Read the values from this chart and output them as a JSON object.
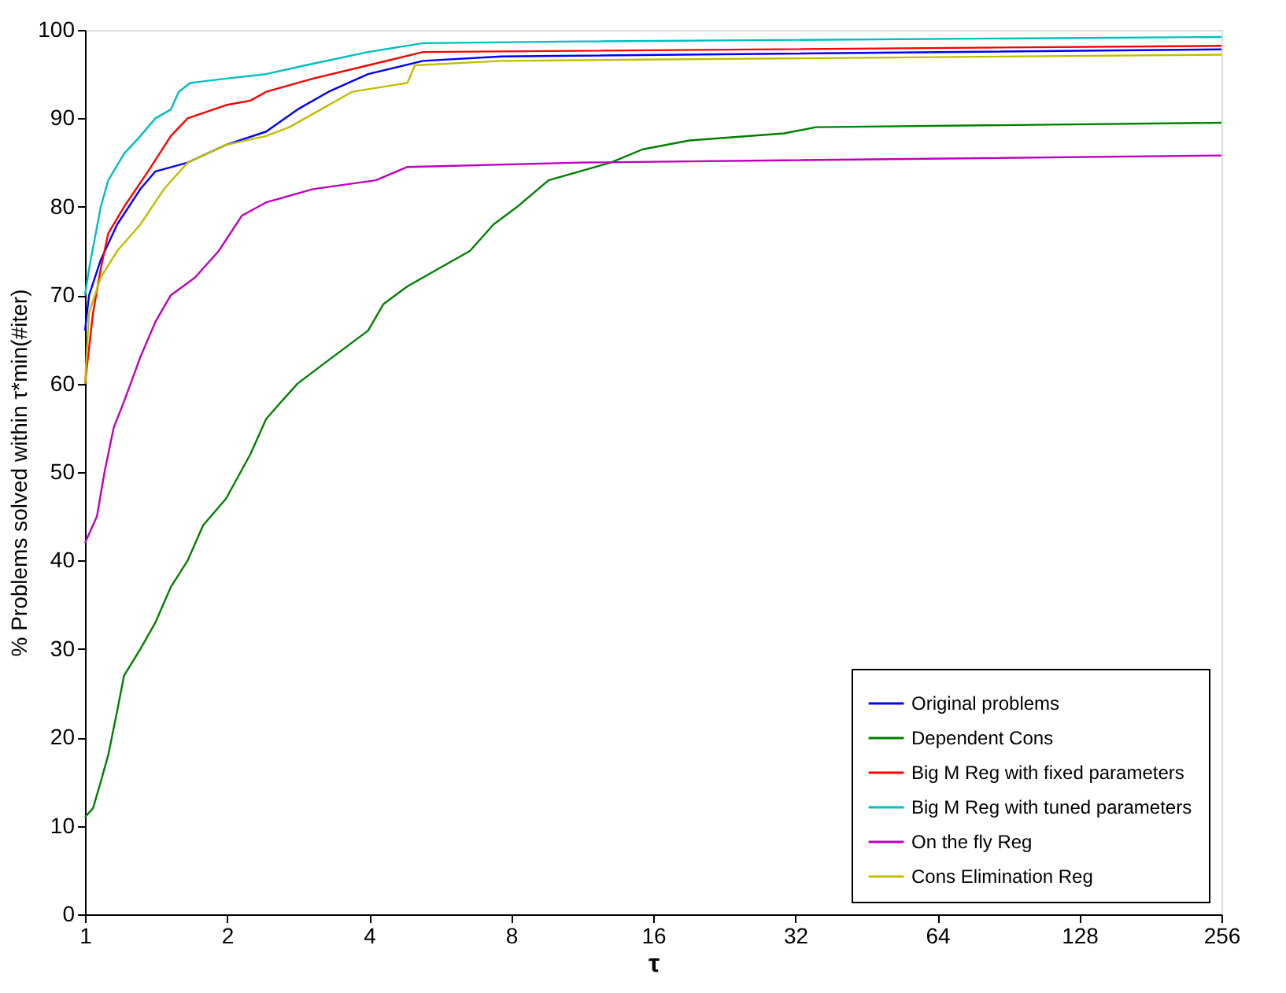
{
  "chart_data": {
    "type": "line",
    "xlabel": "τ",
    "ylabel": "% Problems solved within τ*min(#iter)",
    "log": "x",
    "grid": false,
    "legend": "bottom right",
    "xlim": [
      1,
      256
    ],
    "xticks": [
      1,
      2,
      4,
      8,
      16,
      32,
      64,
      128,
      256
    ],
    "ylim": [
      0,
      100
    ],
    "yticks": [
      0,
      10,
      20,
      30,
      40,
      50,
      60,
      70,
      80,
      90,
      100
    ],
    "line_style": "solid",
    "marker": "none",
    "series": [
      {
        "name": "Original problems",
        "color": "#0000ff",
        "x": [
          1,
          1.02,
          1.08,
          1.17,
          1.31,
          1.41,
          1.65,
          1.99,
          2.42,
          2.82,
          3.28,
          3.98,
          5.2,
          7.63,
          256
        ],
        "values": [
          66,
          70,
          74,
          78,
          82,
          84,
          85,
          87,
          88.5,
          91,
          93,
          95,
          96.5,
          97,
          97.8
        ]
      },
      {
        "name": "Dependent Cons",
        "color": "#008000",
        "x": [
          1,
          1.04,
          1.08,
          1.12,
          1.17,
          1.21,
          1.31,
          1.41,
          1.52,
          1.65,
          1.78,
          1.99,
          2.24,
          2.42,
          2.61,
          2.82,
          3.16,
          3.98,
          4.29,
          4.82,
          5.61,
          6.54,
          7.34,
          8.24,
          9.6,
          13.0,
          15.2,
          19.1,
          30.3,
          35.4,
          256
        ],
        "values": [
          11,
          12,
          15,
          18,
          23,
          27,
          30,
          33,
          37,
          40,
          44,
          47,
          52,
          56,
          58,
          60,
          62,
          66,
          69,
          71,
          73,
          75,
          78,
          80,
          83,
          85,
          86.5,
          87.5,
          88.3,
          89,
          89.5
        ]
      },
      {
        "name": "Big M Reg with fixed parameters",
        "color": "#ff0000",
        "x": [
          1,
          1.04,
          1.08,
          1.12,
          1.21,
          1.36,
          1.52,
          1.65,
          1.99,
          2.24,
          2.42,
          3.04,
          3.98,
          5.2,
          256
        ],
        "values": [
          60,
          68,
          73,
          77,
          80,
          84,
          88,
          90,
          91.5,
          92,
          93,
          94.5,
          96,
          97.5,
          98.2
        ]
      },
      {
        "name": "Big M Reg with tuned parameters",
        "color": "#00bfbf",
        "x": [
          1,
          1.02,
          1.08,
          1.12,
          1.21,
          1.31,
          1.41,
          1.52,
          1.58,
          1.67,
          1.99,
          2.42,
          2.93,
          3.98,
          5.2,
          11.2,
          256
        ],
        "values": [
          70,
          73,
          80,
          83,
          86,
          88,
          90,
          91,
          93,
          94,
          94.5,
          95,
          96,
          97.5,
          98.5,
          98.7,
          99.2
        ]
      },
      {
        "name": "On the fly Reg",
        "color": "#bf00bf",
        "x": [
          1,
          1.06,
          1.1,
          1.15,
          1.21,
          1.31,
          1.41,
          1.52,
          1.71,
          1.92,
          2.15,
          2.42,
          3.04,
          4.13,
          4.82,
          11.2,
          256
        ],
        "values": [
          42,
          45,
          50,
          55,
          58,
          63,
          67,
          70,
          72,
          75,
          79,
          80.5,
          82,
          83,
          84.5,
          85,
          85.8
        ]
      },
      {
        "name": "Cons Elimination Reg",
        "color": "#bfbf00",
        "x": [
          1,
          1.02,
          1.08,
          1.17,
          1.31,
          1.47,
          1.65,
          1.99,
          2.42,
          2.71,
          3.16,
          3.68,
          4.82,
          5.0,
          7.63,
          256
        ],
        "values": [
          60,
          68,
          72,
          75,
          78,
          82,
          85,
          87,
          88,
          89,
          91,
          93,
          94,
          96,
          96.5,
          97.2
        ]
      }
    ]
  }
}
